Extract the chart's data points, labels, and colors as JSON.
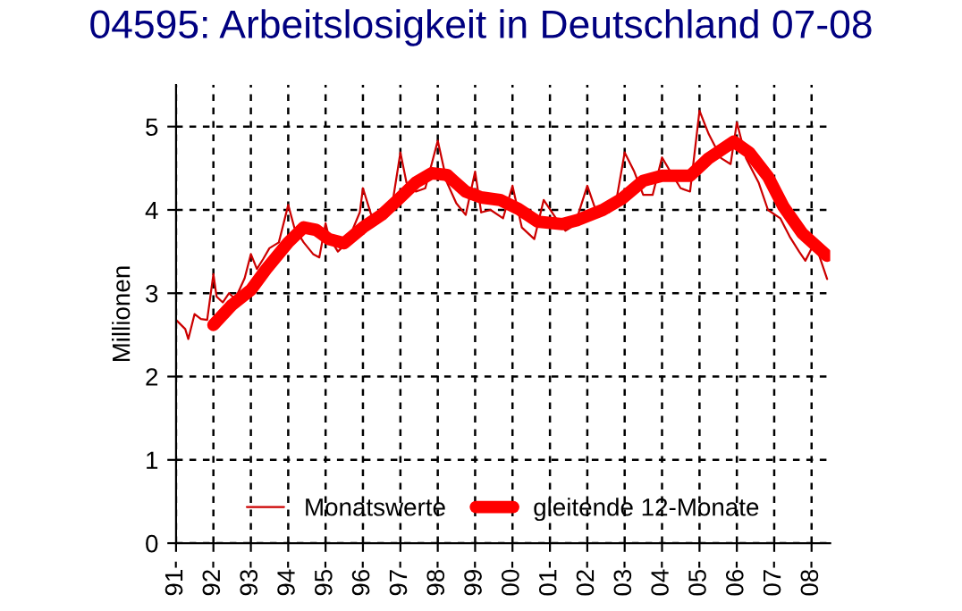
{
  "chart_data": {
    "type": "line",
    "title": "04595: Arbeitslosigkeit in Deutschland 07-08",
    "ylabel": "Millionen",
    "series": [
      {
        "name": "Monatswerte",
        "color": "#cc0000",
        "x": [
          "1991-01",
          "1991-04",
          "1991-05",
          "1991-07",
          "1991-09",
          "1991-11",
          "1992-01",
          "1992-02",
          "1992-04",
          "1992-06",
          "1992-08",
          "1992-11",
          "1993-01",
          "1993-03",
          "1993-05",
          "1993-07",
          "1993-10",
          "1994-01",
          "1994-03",
          "1994-06",
          "1994-09",
          "1994-11",
          "1995-01",
          "1995-02",
          "1995-05",
          "1995-08",
          "1995-12",
          "1996-01",
          "1996-04",
          "1996-07",
          "1996-10",
          "1997-01",
          "1997-03",
          "1997-06",
          "1997-09",
          "1998-01",
          "1998-04",
          "1998-07",
          "1998-10",
          "1999-01",
          "1999-03",
          "1999-06",
          "1999-10",
          "2000-01",
          "2000-04",
          "2000-08",
          "2000-11",
          "2001-03",
          "2001-06",
          "2001-09",
          "2002-01",
          "2002-04",
          "2002-08",
          "2002-10",
          "2003-01",
          "2003-04",
          "2003-07",
          "2003-10",
          "2004-01",
          "2004-04",
          "2004-07",
          "2004-10",
          "2005-01",
          "2005-04",
          "2005-08",
          "2005-11",
          "2006-01",
          "2006-04",
          "2006-08",
          "2006-11",
          "2007-03",
          "2007-06",
          "2007-09",
          "2007-11",
          "2008-02",
          "2008-06"
        ],
        "values": [
          2.68,
          2.57,
          2.45,
          2.75,
          2.69,
          2.68,
          3.23,
          2.96,
          2.89,
          3.0,
          2.93,
          3.18,
          3.47,
          3.29,
          3.41,
          3.54,
          3.61,
          4.06,
          3.79,
          3.61,
          3.47,
          3.43,
          3.84,
          3.68,
          3.5,
          3.61,
          3.97,
          4.26,
          3.9,
          3.9,
          3.97,
          4.69,
          4.33,
          4.22,
          4.26,
          4.83,
          4.33,
          4.08,
          3.94,
          4.46,
          3.97,
          4.0,
          3.9,
          4.29,
          3.79,
          3.65,
          4.12,
          3.9,
          3.75,
          3.82,
          4.29,
          3.97,
          3.97,
          4.04,
          4.69,
          4.47,
          4.18,
          4.18,
          4.63,
          4.44,
          4.26,
          4.22,
          5.19,
          4.91,
          4.62,
          4.55,
          5.05,
          4.62,
          4.33,
          4.0,
          3.9,
          3.68,
          3.5,
          3.39,
          3.61,
          3.17
        ]
      },
      {
        "name": "gleitende 12-Monate",
        "color": "#ff0000",
        "x": [
          "1992-01",
          "1992-07",
          "1993-01",
          "1993-06",
          "1994-01",
          "1994-06",
          "1994-10",
          "1995-02",
          "1995-07",
          "1996-01",
          "1996-07",
          "1997-01",
          "1997-06",
          "1997-11",
          "1998-04",
          "1998-10",
          "1999-03",
          "1999-09",
          "2000-03",
          "2000-09",
          "2001-05",
          "2001-10",
          "2002-06",
          "2002-12",
          "2003-07",
          "2004-01",
          "2004-10",
          "2005-04",
          "2005-12",
          "2006-05",
          "2006-11",
          "2007-04",
          "2007-10",
          "2008-06"
        ],
        "values": [
          2.62,
          2.86,
          3.04,
          3.29,
          3.61,
          3.79,
          3.76,
          3.65,
          3.6,
          3.79,
          3.94,
          4.15,
          4.33,
          4.44,
          4.42,
          4.22,
          4.15,
          4.12,
          4.01,
          3.86,
          3.83,
          3.88,
          4.0,
          4.13,
          4.35,
          4.41,
          4.41,
          4.62,
          4.82,
          4.69,
          4.4,
          4.04,
          3.72,
          3.45
        ]
      }
    ],
    "xlim": [
      "1991-01",
      "2008-07"
    ],
    "ylim": [
      0,
      5.5
    ],
    "xticks": [
      {
        "value": "1991",
        "label": "91-"
      },
      {
        "value": "1992",
        "label": "92-"
      },
      {
        "value": "1993",
        "label": "93-"
      },
      {
        "value": "1994",
        "label": "94-"
      },
      {
        "value": "1995",
        "label": "95-"
      },
      {
        "value": "1996",
        "label": "96-"
      },
      {
        "value": "1997",
        "label": "97-"
      },
      {
        "value": "1998",
        "label": "98-"
      },
      {
        "value": "1999",
        "label": "99-"
      },
      {
        "value": "2000",
        "label": "00-"
      },
      {
        "value": "2001",
        "label": "01-"
      },
      {
        "value": "2002",
        "label": "02-"
      },
      {
        "value": "2003",
        "label": "03-"
      },
      {
        "value": "2004",
        "label": "04-"
      },
      {
        "value": "2005",
        "label": "05-"
      },
      {
        "value": "2006",
        "label": "06-"
      },
      {
        "value": "2007",
        "label": "07-"
      },
      {
        "value": "2008",
        "label": "08-"
      }
    ],
    "yticks": [
      0,
      1,
      2,
      3,
      4,
      5
    ],
    "grid": true,
    "legend": "bottom",
    "line_style": "solid",
    "marker": "none"
  }
}
